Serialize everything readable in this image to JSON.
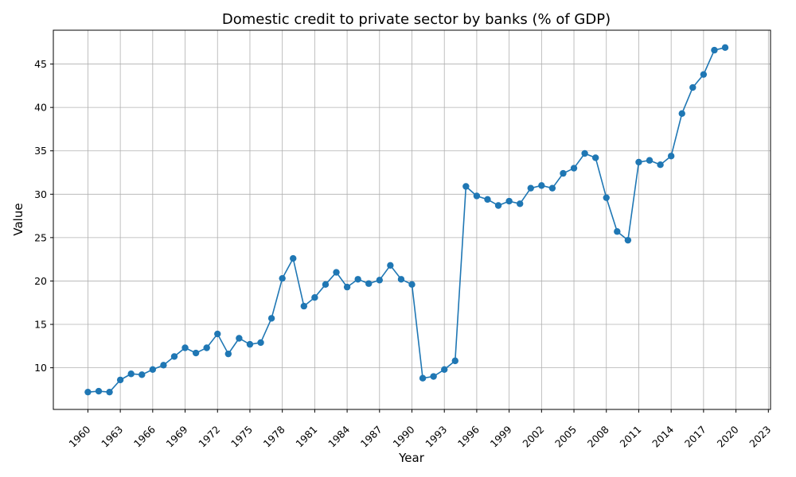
{
  "chart_data": {
    "type": "line",
    "title": "Domestic credit to private sector by banks (% of GDP)",
    "xlabel": "Year",
    "ylabel": "Value",
    "xlim": [
      1956.8,
      2023.2
    ],
    "ylim": [
      5.2,
      48.9
    ],
    "grid": true,
    "x_ticks": [
      1960,
      1963,
      1966,
      1969,
      1972,
      1975,
      1978,
      1981,
      1984,
      1987,
      1990,
      1993,
      1996,
      1999,
      2002,
      2005,
      2008,
      2011,
      2014,
      2017,
      2020,
      2023
    ],
    "y_ticks": [
      10,
      15,
      20,
      25,
      30,
      35,
      40,
      45
    ],
    "color": "#1f77b4",
    "x": [
      1960,
      1961,
      1962,
      1963,
      1964,
      1965,
      1966,
      1967,
      1968,
      1969,
      1970,
      1971,
      1972,
      1973,
      1974,
      1975,
      1976,
      1977,
      1978,
      1979,
      1980,
      1981,
      1982,
      1983,
      1984,
      1985,
      1986,
      1987,
      1988,
      1989,
      1990,
      1991,
      1992,
      1993,
      1994,
      1995,
      1996,
      1997,
      1998,
      1999,
      2000,
      2001,
      2002,
      2003,
      2004,
      2005,
      2006,
      2007,
      2008,
      2009,
      2010,
      2011,
      2012,
      2013,
      2014,
      2015,
      2016,
      2017,
      2018,
      2019
    ],
    "y": [
      7.2,
      7.3,
      7.2,
      8.6,
      9.3,
      9.2,
      9.8,
      10.3,
      11.3,
      12.3,
      11.7,
      12.3,
      13.9,
      11.6,
      13.4,
      12.7,
      12.9,
      15.7,
      20.3,
      22.6,
      17.1,
      18.1,
      19.6,
      21.0,
      19.3,
      20.2,
      19.7,
      20.1,
      21.8,
      20.2,
      19.6,
      8.8,
      9.0,
      9.8,
      10.8,
      30.9,
      29.8,
      29.4,
      28.7,
      29.2,
      28.9,
      30.7,
      31.0,
      30.7,
      32.4,
      33.0,
      34.7,
      34.2,
      29.6,
      25.7,
      24.7,
      33.7,
      33.9,
      33.4,
      34.4,
      39.3,
      42.3,
      43.8,
      46.6,
      46.9
    ]
  }
}
